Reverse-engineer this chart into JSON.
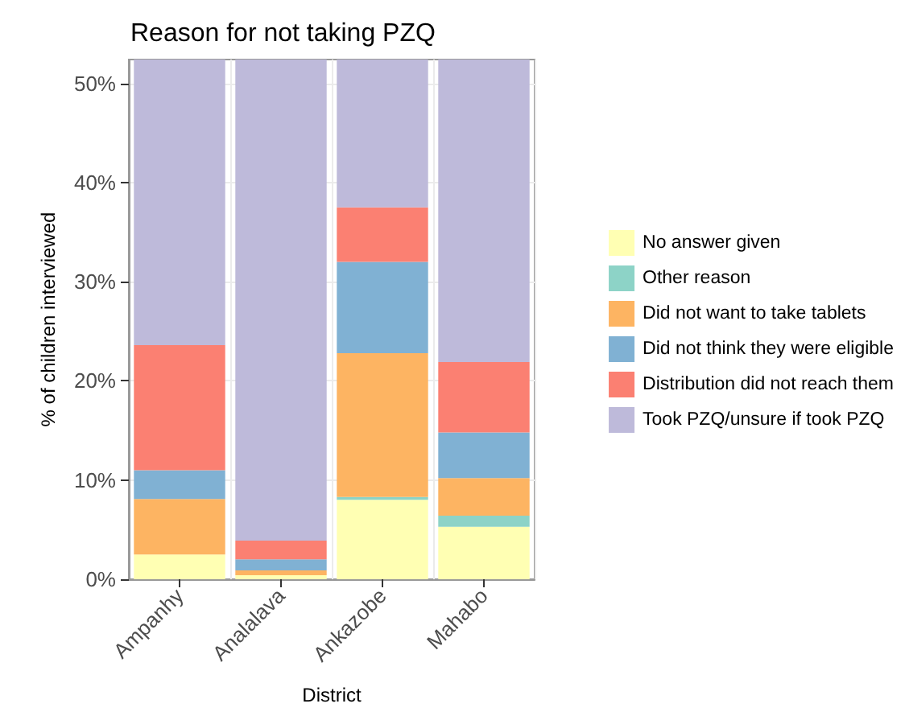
{
  "chart_data": {
    "type": "bar",
    "title": "Reason for not taking PZQ",
    "xlabel": "District",
    "ylabel": "% of children interviewed",
    "categories": [
      "Ampanhy",
      "Analalava",
      "Ankazobe",
      "Mahabo"
    ],
    "stacked": true,
    "grid": true,
    "legend": "right",
    "ylim": [
      0,
      52.4
    ],
    "yticks": [
      {
        "value": 0,
        "label": "0%"
      },
      {
        "value": 10,
        "label": "10%"
      },
      {
        "value": 20,
        "label": "20%"
      },
      {
        "value": 30,
        "label": "30%"
      },
      {
        "value": 40,
        "label": "40%"
      },
      {
        "value": 50,
        "label": "50%"
      }
    ],
    "series": [
      {
        "name": "No answer given",
        "color": "#ffffb3",
        "values": [
          2.5,
          0.4,
          8.0,
          5.3
        ]
      },
      {
        "name": "Other reason",
        "color": "#8dd3c7",
        "values": [
          0,
          0,
          0.3,
          1.1
        ]
      },
      {
        "name": "Did not want to take tablets",
        "color": "#fdb462",
        "values": [
          5.6,
          0.5,
          14.5,
          3.8
        ]
      },
      {
        "name": "Did not think they were eligible",
        "color": "#80b1d3",
        "values": [
          2.9,
          1.1,
          9.2,
          4.6
        ]
      },
      {
        "name": "Distribution did not reach them",
        "color": "#fb8072",
        "values": [
          12.6,
          1.9,
          5.5,
          7.1
        ]
      },
      {
        "name": "Took PZQ/unsure if took PZQ",
        "color": "#bebada",
        "values": [
          28.8,
          48.5,
          14.9,
          30.5
        ]
      }
    ]
  }
}
